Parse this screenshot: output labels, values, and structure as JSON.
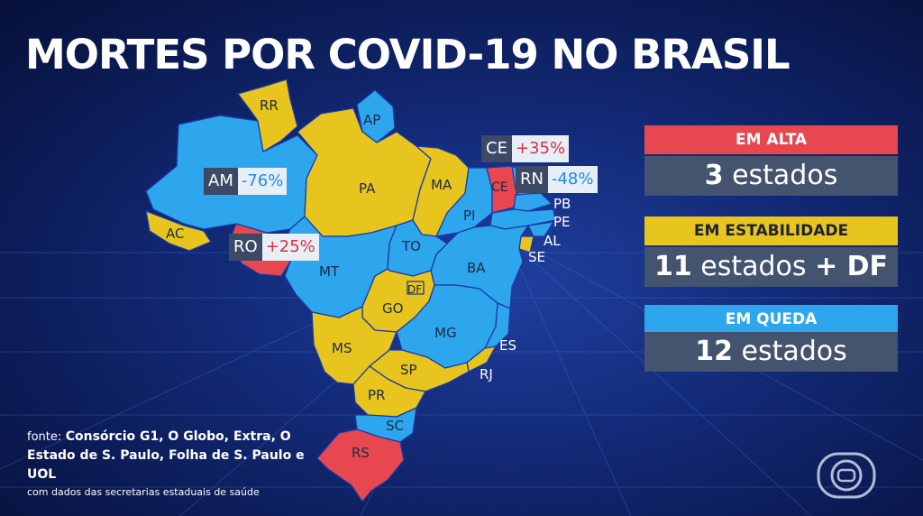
{
  "title": "MORTES POR COVID-19 NO BRASIL",
  "colors": {
    "alta": "#e8474f",
    "estabilidade": "#e8c51e",
    "queda": "#2ea6ee",
    "box": "#44536e"
  },
  "map": {
    "labels": {
      "rr": "RR",
      "ap": "AP",
      "pa": "PA",
      "ma": "MA",
      "pi": "PI",
      "ce": "CE",
      "pb": "PB",
      "pe": "PE",
      "al": "AL",
      "se": "SE",
      "ac": "AC",
      "mt": "MT",
      "to": "TO",
      "ba": "BA",
      "df": "DF",
      "go": "GO",
      "mg": "MG",
      "ms": "MS",
      "es": "ES",
      "sp": "SP",
      "rj": "RJ",
      "pr": "PR",
      "sc": "SC",
      "rs": "RS"
    },
    "callouts": {
      "am": {
        "code": "AM",
        "value": "-76%"
      },
      "ro": {
        "code": "RO",
        "value": "+25%"
      },
      "ce": {
        "code": "CE",
        "value": "+35%"
      },
      "rn": {
        "code": "RN",
        "value": "-48%"
      }
    }
  },
  "legend": {
    "alta": {
      "label": "EM ALTA",
      "count": "3",
      "unit": "estados"
    },
    "estabilidade": {
      "label": "EM ESTABILIDADE",
      "count": "11",
      "unit": "estados",
      "suffix": "+ DF"
    },
    "queda": {
      "label": "EM QUEDA",
      "count": "12",
      "unit": "estados"
    }
  },
  "source": {
    "label": "fonte:",
    "text": "Consórcio G1, O Globo, Extra, O Estado de S. Paulo, Folha de S. Paulo e UOL",
    "note": "com dados das secretarias estaduais de saúde"
  },
  "logo_icon": "globo-logo-icon"
}
